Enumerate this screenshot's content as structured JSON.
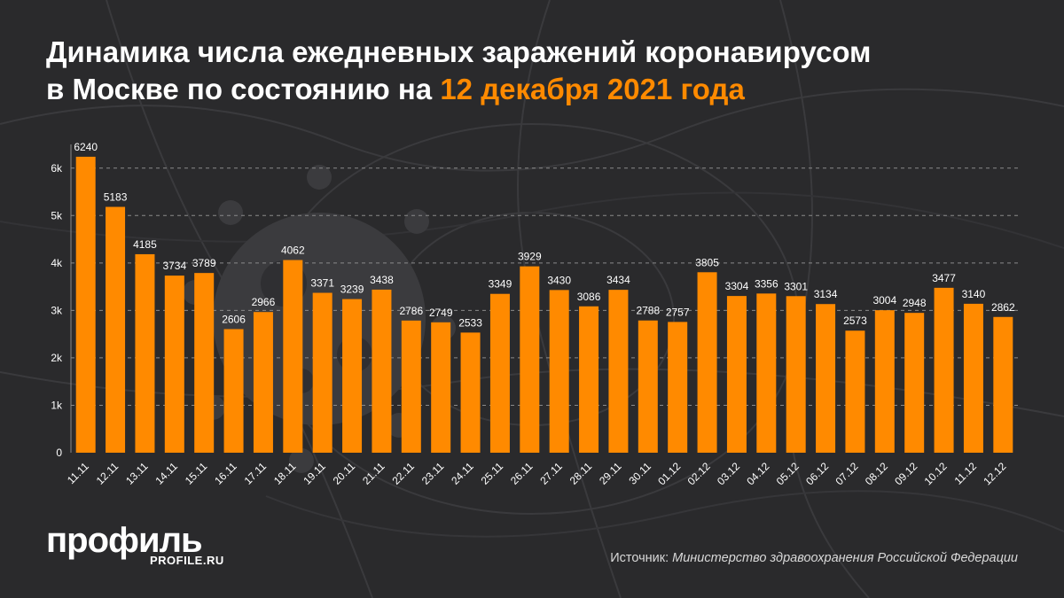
{
  "title": {
    "line1": "Динамика числа ежедневных заражений коронавирусом",
    "line2_prefix": "в Москве по состоянию на ",
    "line2_accent": "12 декабря 2021 года"
  },
  "colors": {
    "background": "#2a2a2c",
    "bar": "#ff8a00",
    "accent": "#ff8a00",
    "text": "#ffffff"
  },
  "chart_data": {
    "type": "bar",
    "title": "Динамика числа ежедневных заражений коронавирусом в Москве по состоянию на 12 декабря 2021 года",
    "xlabel": "",
    "ylabel": "",
    "ylim": [
      0,
      6500
    ],
    "yticks": [
      0,
      1000,
      2000,
      3000,
      4000,
      5000,
      6000
    ],
    "ytick_labels": [
      "0",
      "1k",
      "2k",
      "3k",
      "4k",
      "5k",
      "6k"
    ],
    "grid": true,
    "legend": "none",
    "categories": [
      "11.11",
      "12.11",
      "13.11",
      "14.11",
      "15.11",
      "16.11",
      "17.11",
      "18.11",
      "19.11",
      "20.11",
      "21.11",
      "22.11",
      "23.11",
      "24.11",
      "25.11",
      "26.11",
      "27.11",
      "28.11",
      "29.11",
      "30.11",
      "01.12",
      "02.12",
      "03.12",
      "04.12",
      "05.12",
      "06.12",
      "07.12",
      "08.12",
      "09.12",
      "10.12",
      "11.12",
      "12.12"
    ],
    "values": [
      6240,
      5183,
      4185,
      3734,
      3789,
      2606,
      2966,
      4062,
      3371,
      3239,
      3438,
      2786,
      2749,
      2533,
      3349,
      3929,
      3430,
      3086,
      3434,
      2788,
      2757,
      3805,
      3304,
      3356,
      3301,
      3134,
      2573,
      3004,
      2948,
      3477,
      3140,
      2862
    ]
  },
  "logo": {
    "main": "профиль",
    "sub": "PROFILE.RU"
  },
  "source": {
    "label": "Источник: ",
    "text": "Министерство здравоохранения Российской Федерации"
  }
}
